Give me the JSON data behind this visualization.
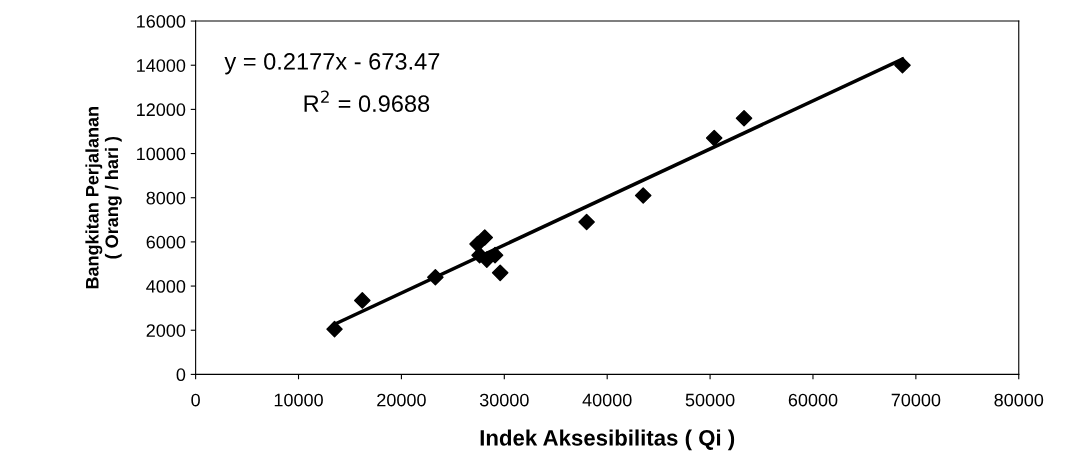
{
  "chart_data": {
    "type": "scatter",
    "xlabel": "Indek Aksesibilitas ( Qi )",
    "ylabel": "Bangkitan Perjalanan\n( Orang / hari )",
    "series": [
      {
        "color": "#000000",
        "marker": "diamond",
        "x": [
          13500,
          16200,
          23300,
          27400,
          27600,
          28100,
          28300,
          29100,
          29600,
          38000,
          43500,
          50400,
          53300,
          68700
        ],
        "values": [
          2050,
          3350,
          4400,
          5900,
          5400,
          6200,
          5200,
          5400,
          4600,
          6900,
          8100,
          10700,
          11600,
          14000
        ]
      },
      {
        "type": "line",
        "color": "#000000",
        "line_style": "solid",
        "marker": "none",
        "x": [
          13500,
          68700
        ],
        "values": [
          2270,
          14280
        ]
      }
    ],
    "annotations": [
      "y = 0.2177x - 673.47",
      "R$^{2}$ = 0.9688"
    ],
    "xlim": [
      0,
      80000
    ],
    "xticks": [
      0,
      10000,
      20000,
      30000,
      40000,
      50000,
      60000,
      70000,
      80000
    ],
    "ylim": [
      0,
      16000
    ],
    "yticks": [
      0,
      2000,
      4000,
      6000,
      8000,
      10000,
      12000,
      14000,
      16000
    ],
    "grid": false,
    "legend": false
  }
}
